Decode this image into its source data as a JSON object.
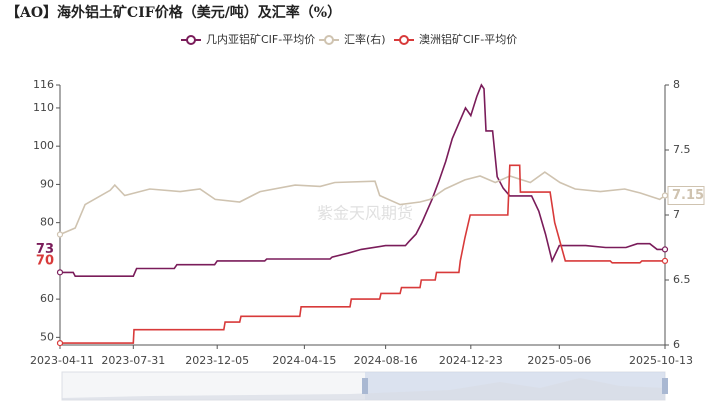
{
  "chart_data": {
    "type": "line",
    "title": "【AO】海外铝土矿CIF价格（美元/吨）及汇率（%）",
    "watermark": "紫金天风期货",
    "xlim": [
      "2023-04-11",
      "2025-10-13"
    ],
    "xticks": [
      "2023-04-11",
      "2023-07-31",
      "2023-12-05",
      "2024-04-15",
      "2024-08-16",
      "2024-12-23",
      "2025-05-06",
      "2025-10-13"
    ],
    "ylim": [
      48,
      116
    ],
    "yticks": [
      50,
      60,
      80,
      90,
      100,
      110,
      116
    ],
    "y2lim": [
      6,
      8
    ],
    "y2ticks": [
      6,
      6.5,
      7,
      7.5,
      8
    ],
    "grid": false,
    "legend": "top",
    "series": [
      {
        "name": "几内亚铝矿CIF-平均价",
        "color": "#7a1c5a",
        "end_label": 73,
        "x": [
          "2023-04-11",
          "2023-05-01",
          "2023-05-04",
          "2023-07-31",
          "2023-08-05",
          "2023-10-01",
          "2023-10-05",
          "2023-12-01",
          "2023-12-05",
          "2024-02-15",
          "2024-02-18",
          "2024-05-24",
          "2024-05-27",
          "2024-06-20",
          "2024-07-10",
          "2024-08-16",
          "2024-09-15",
          "2024-09-20",
          "2024-10-01",
          "2024-10-10",
          "2024-10-25",
          "2024-11-05",
          "2024-11-15",
          "2024-11-25",
          "2024-12-05",
          "2024-12-15",
          "2024-12-23",
          "2025-01-01",
          "2025-01-08",
          "2025-01-12",
          "2025-01-15",
          "2025-01-25",
          "2025-02-01",
          "2025-02-10",
          "2025-02-20",
          "2025-03-25",
          "2025-04-05",
          "2025-04-15",
          "2025-04-25",
          "2025-05-06",
          "2025-06-15",
          "2025-07-15",
          "2025-08-15",
          "2025-09-01",
          "2025-09-20",
          "2025-10-01",
          "2025-10-13"
        ],
        "values": [
          67,
          67,
          66,
          66,
          68,
          68,
          69,
          69,
          70,
          70,
          70.5,
          70.5,
          71,
          72,
          73,
          74,
          74,
          75,
          77,
          80,
          86,
          91,
          96,
          102,
          106,
          110,
          108,
          113,
          116,
          115,
          104,
          104,
          92,
          89,
          87,
          87,
          83,
          77,
          70,
          74,
          74,
          73.5,
          73.5,
          74.5,
          74.5,
          73,
          73
        ]
      },
      {
        "name": "汇率(右)",
        "color": "#cfc3b0",
        "axis": "y2",
        "end_label": 7.15,
        "x": [
          "2023-04-11",
          "2023-05-04",
          "2023-05-19",
          "2023-06-26",
          "2023-07-03",
          "2023-07-18",
          "2023-08-25",
          "2023-10-10",
          "2023-11-09",
          "2023-12-02",
          "2024-01-08",
          "2024-02-08",
          "2024-04-01",
          "2024-05-09",
          "2024-05-31",
          "2024-07-31",
          "2024-08-07",
          "2024-09-07",
          "2024-10-07",
          "2024-10-22",
          "2024-11-14",
          "2024-12-14",
          "2025-01-06",
          "2025-01-29",
          "2025-02-20",
          "2025-03-23",
          "2025-04-14",
          "2025-05-07",
          "2025-05-30",
          "2025-07-07",
          "2025-08-13",
          "2025-09-05",
          "2025-10-05",
          "2025-10-13"
        ],
        "values": [
          6.85,
          6.9,
          7.08,
          7.19,
          7.23,
          7.15,
          7.2,
          7.18,
          7.2,
          7.12,
          7.1,
          7.18,
          7.23,
          7.22,
          7.25,
          7.26,
          7.15,
          7.08,
          7.1,
          7.12,
          7.2,
          7.27,
          7.3,
          7.25,
          7.3,
          7.25,
          7.33,
          7.25,
          7.2,
          7.18,
          7.2,
          7.17,
          7.12,
          7.15
        ]
      },
      {
        "name": "澳洲铝矿CIF-平均价",
        "color": "#d83a3a",
        "end_label": 70,
        "x": [
          "2023-04-11",
          "2023-07-31",
          "2023-08-01",
          "2023-12-15",
          "2023-12-17",
          "2024-01-08",
          "2024-01-10",
          "2024-04-08",
          "2024-04-10",
          "2024-06-23",
          "2024-06-25",
          "2024-08-07",
          "2024-08-09",
          "2024-09-07",
          "2024-09-09",
          "2024-10-07",
          "2024-10-09",
          "2024-10-30",
          "2024-11-01",
          "2024-12-05",
          "2024-12-07",
          "2024-12-14",
          "2024-12-22",
          "2025-02-17",
          "2025-02-20",
          "2025-03-07",
          "2025-03-08",
          "2025-04-22",
          "2025-04-29",
          "2025-05-15",
          "2025-07-22",
          "2025-07-25",
          "2025-09-05",
          "2025-09-08",
          "2025-10-13"
        ],
        "values": [
          48.5,
          48.5,
          52,
          52,
          54,
          54,
          55.5,
          55.5,
          58,
          58,
          60,
          60,
          61.5,
          61.5,
          63,
          63,
          65,
          65,
          67,
          67,
          70,
          76,
          82,
          82,
          95,
          95,
          88,
          88,
          80,
          70,
          70,
          69.5,
          69.5,
          70,
          70
        ]
      }
    ]
  }
}
